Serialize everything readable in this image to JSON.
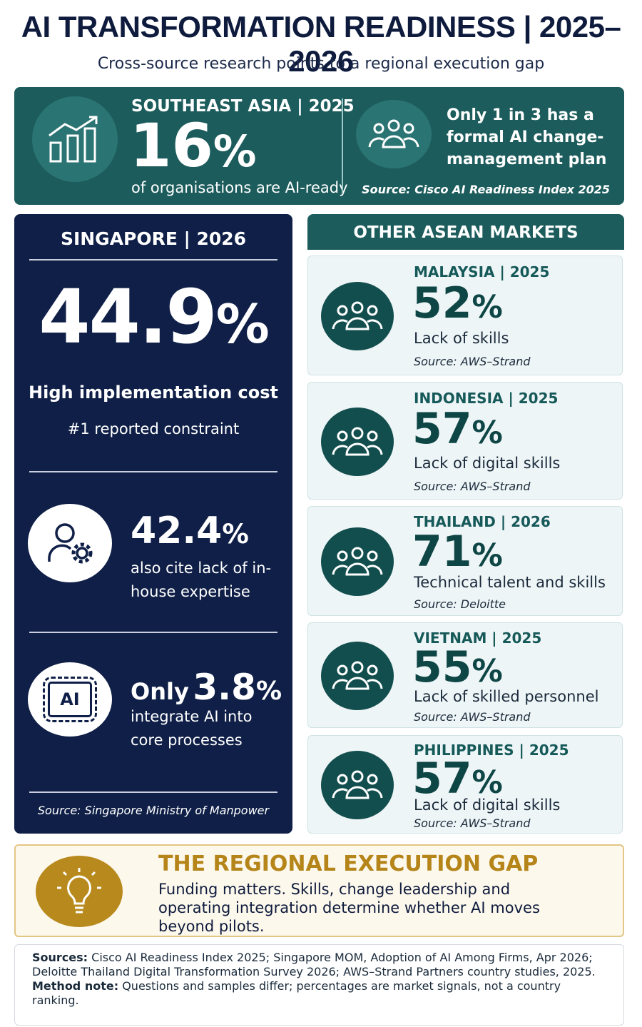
{
  "header": {
    "title": "AI TRANSFORMATION READINESS | 2025–2026",
    "subtitle": "Cross-source research points to a regional execution gap"
  },
  "southeast_asia": {
    "region": "SOUTHEAST ASIA | 2025",
    "value": "16",
    "unit": "%",
    "caption": "of organisations are AI-ready",
    "note": "Only 1 in 3 has a formal AI change-management plan",
    "source": "Source: Cisco AI Readiness Index 2025"
  },
  "singapore": {
    "heading": "SINGAPORE | 2026",
    "main": {
      "value": "44.9",
      "unit": "%",
      "label": "High implementation cost",
      "sub": "#1 reported constraint"
    },
    "second": {
      "value": "42.4",
      "unit": "%",
      "text": "also cite lack of in-house expertise"
    },
    "third": {
      "prefix": "Only",
      "value": "3.8",
      "unit": "%",
      "text": "integrate AI into core processes",
      "icon": "AI"
    },
    "source": "Source: Singapore Ministry of Manpower"
  },
  "other_markets": {
    "heading": "OTHER ASEAN MARKETS",
    "markets": [
      {
        "name": "MALAYSIA | 2025",
        "value": "52",
        "unit": "%",
        "label": "Lack of skills",
        "source": "Source: AWS–Strand"
      },
      {
        "name": "INDONESIA | 2025",
        "value": "57",
        "unit": "%",
        "label": "Lack of digital skills",
        "source": "Source: AWS–Strand"
      },
      {
        "name": "THAILAND | 2026",
        "value": "71",
        "unit": "%",
        "label": "Technical talent and skills",
        "source": "Source: Deloitte"
      },
      {
        "name": "VIETNAM | 2025",
        "value": "55",
        "unit": "%",
        "label": "Lack of skilled personnel",
        "source": "Source: AWS–Strand"
      },
      {
        "name": "PHILIPPINES | 2025",
        "value": "57",
        "unit": "%",
        "label": "Lack of digital skills",
        "source": "Source: AWS–Strand"
      }
    ]
  },
  "gap": {
    "title": "THE REGIONAL EXECUTION GAP",
    "text": "Funding matters. Skills, change leadership and operating integration determine whether AI moves beyond pilots."
  },
  "sources": {
    "label": "Sources:",
    "text": "Cisco AI Readiness Index 2025; Singapore MOM, Adoption of AI Among Firms, Apr 2026; Deloitte Thailand Digital Transformation Survey 2026; AWS–Strand Partners country studies, 2025.",
    "method_label": "Method note:",
    "method_text": "Questions and samples differ; percentages are market signals, not a country ranking."
  }
}
